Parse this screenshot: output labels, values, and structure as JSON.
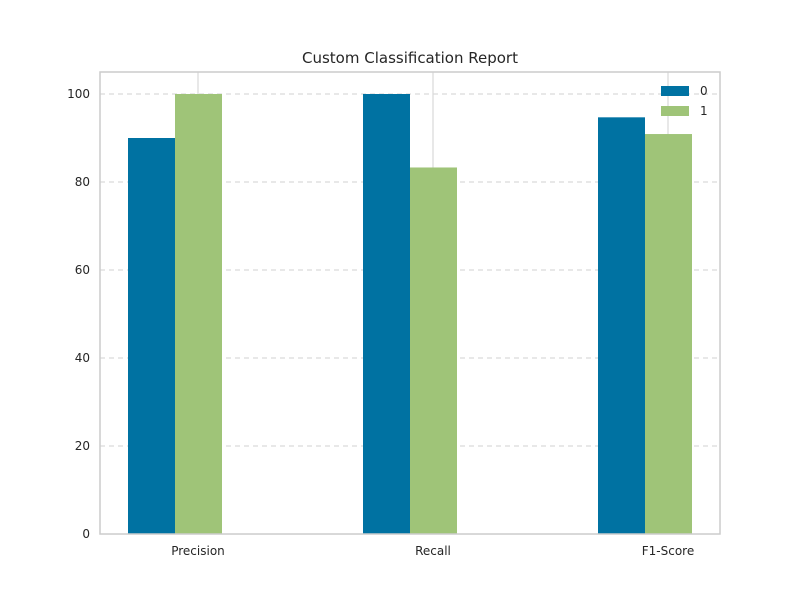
{
  "chart_data": {
    "type": "bar",
    "title": "Custom Classification Report",
    "xlabel": "",
    "ylabel": "",
    "categories": [
      "Precision",
      "Recall",
      "F1-Score"
    ],
    "series": [
      {
        "name": "0",
        "values": [
          90.0,
          100.0,
          94.7
        ],
        "color": "#0072a2"
      },
      {
        "name": "1",
        "values": [
          100.0,
          83.3,
          90.9
        ],
        "color": "#9fc478"
      }
    ],
    "ylim": [
      0,
      105
    ],
    "yticks": [
      0,
      20,
      40,
      60,
      80,
      100
    ],
    "grid": {
      "y": "dashed",
      "x": "solid"
    },
    "legend": "top-right"
  }
}
